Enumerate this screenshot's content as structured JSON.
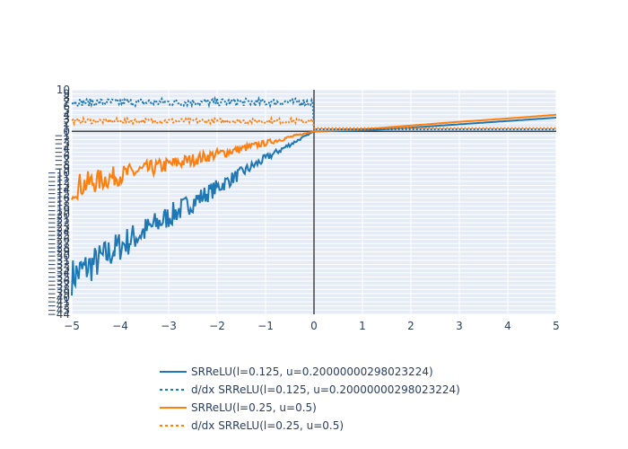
{
  "chart_data": {
    "type": "line",
    "xlim": [
      -5,
      5
    ],
    "ylim": [
      -44,
      10
    ],
    "x_ticks": [
      -5,
      -4,
      -3,
      -2,
      -1,
      0,
      1,
      2,
      3,
      4,
      5
    ],
    "y_ticks": [
      10,
      9,
      8,
      7,
      6,
      5,
      4,
      3,
      2,
      1,
      0,
      -1,
      -2,
      -3,
      -4,
      -5,
      -6,
      -7,
      -8,
      -9,
      -10,
      -11,
      -12,
      -13,
      -14,
      -15,
      -16,
      -17,
      -18,
      -19,
      -20,
      -21,
      -22,
      -23,
      -24,
      -25,
      -26,
      -27,
      -28,
      -29,
      -30,
      -31,
      -32,
      -33,
      -34,
      -35,
      -36,
      -37,
      -38,
      -39,
      -40,
      -41,
      -42,
      -43,
      -44
    ],
    "x_tick_labels": [
      "−5",
      "−4",
      "−3",
      "−2",
      "−1",
      "0",
      "1",
      "2",
      "3",
      "4",
      "5"
    ],
    "y_tick_labels": [
      "10",
      "9",
      "8",
      "7",
      "6",
      "5",
      "4",
      "3",
      "2",
      "1",
      "0",
      "−1",
      "−2",
      "−3",
      "−4",
      "−5",
      "−6",
      "−7",
      "−8",
      "−9",
      "−10",
      "−11",
      "−12",
      "−13",
      "−14",
      "−15",
      "−16",
      "−17",
      "−18",
      "−19",
      "−20",
      "−21",
      "−22",
      "−23",
      "−24",
      "−25",
      "−26",
      "−27",
      "−28",
      "−29",
      "−30",
      "−31",
      "−32",
      "−33",
      "−34",
      "−35",
      "−36",
      "−37",
      "−38",
      "−39",
      "−40",
      "−41",
      "−42",
      "−43",
      "−44"
    ],
    "grid": true,
    "legend_position": "bottom",
    "series": [
      {
        "name": "SRReLU(l=0.125, u=0.20000000298023224)",
        "color": "#1f77b4",
        "dash": "solid",
        "x": [
          -5,
          -4.5,
          -4,
          -3.5,
          -3,
          -2.5,
          -2,
          -1.5,
          -1,
          -0.5,
          0,
          1,
          2,
          3,
          4,
          5
        ],
        "y": [
          -35,
          -31.5,
          -27.5,
          -24,
          -20.5,
          -17,
          -13.5,
          -10,
          -6.5,
          -3.2,
          0,
          0.2,
          0.9,
          1.7,
          2.5,
          3.3
        ],
        "noise": [
          4.5,
          4.2,
          3.8,
          3.4,
          2.9,
          2.5,
          2.0,
          1.5,
          1.0,
          0.5,
          0,
          0,
          0,
          0,
          0,
          0
        ]
      },
      {
        "name": "d/dx SRReLU(l=0.125, u=0.20000000298023224)",
        "color": "#1f77b4",
        "dash": "dot",
        "x": [
          -5,
          -0.01,
          0,
          5
        ],
        "y": [
          7,
          7,
          0.5,
          0.5
        ],
        "noise": [
          0.9,
          0.9,
          0,
          0
        ]
      },
      {
        "name": "SRReLU(l=0.25, u=0.5)",
        "color": "#ff7f0e",
        "dash": "solid",
        "x": [
          -5,
          -4.5,
          -4,
          -3.5,
          -3,
          -2.5,
          -2,
          -1.5,
          -1,
          -0.5,
          0,
          1,
          2,
          3,
          4,
          5
        ],
        "y": [
          -13.5,
          -12,
          -10.5,
          -9.3,
          -8,
          -6.8,
          -5.5,
          -4.2,
          -2.8,
          -1.4,
          0,
          0.5,
          1.4,
          2.3,
          3.1,
          4
        ],
        "noise": [
          3.2,
          2.8,
          2.4,
          2.1,
          1.8,
          1.5,
          1.3,
          1.0,
          0.7,
          0.4,
          0,
          0,
          0,
          0,
          0,
          0
        ]
      },
      {
        "name": "d/dx SRReLU(l=0.25, u=0.5)",
        "color": "#ff7f0e",
        "dash": "dot",
        "x": [
          -5,
          -0.01,
          0,
          5
        ],
        "y": [
          2.5,
          2.5,
          0.8,
          0.8
        ],
        "noise": [
          0.6,
          0.6,
          0,
          0
        ]
      }
    ]
  }
}
